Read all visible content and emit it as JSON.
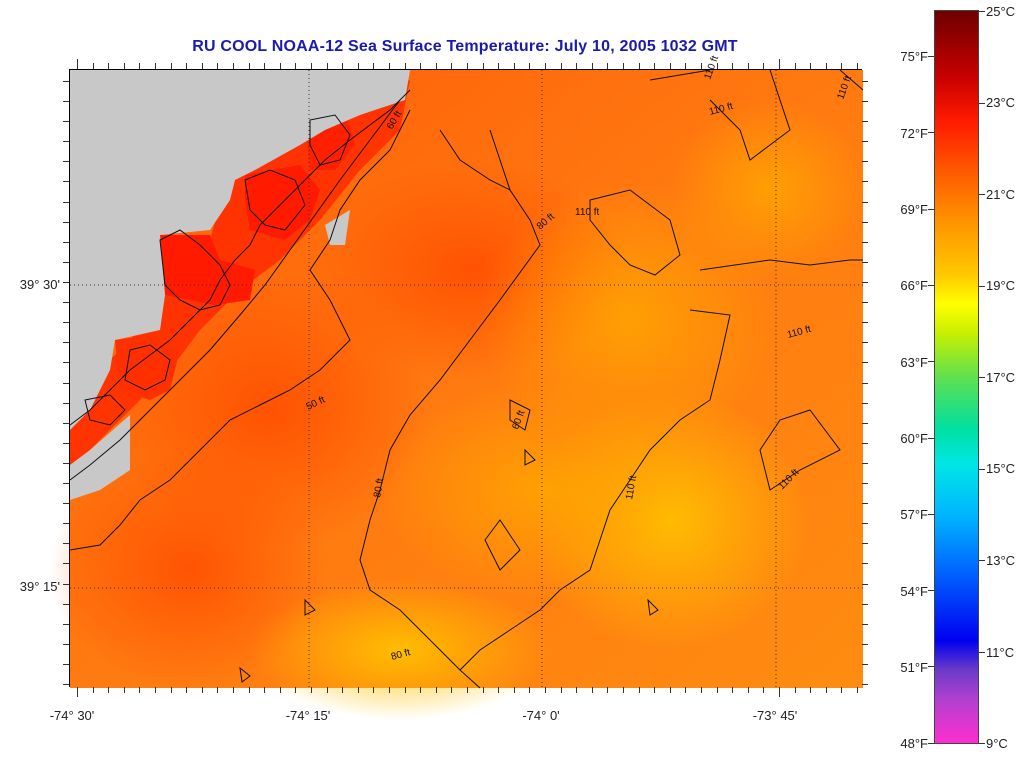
{
  "title": "RU COOL  NOAA-12  Sea Surface Temperature:  July 10, 2005 1032 GMT",
  "map": {
    "lon_labels": [
      "-74° 30'",
      "-74° 15'",
      "-74° 0'",
      "-73° 45'"
    ],
    "lat_labels": [
      "39° 30'",
      "39° 15'"
    ],
    "contour_labels": [
      "60 ft",
      "110 ft",
      "110 ft",
      "110 ft",
      "110 ft",
      "80 ft",
      "60 ft",
      "50 ft",
      "80 ft",
      "110 ft",
      "110 ft",
      "80 ft",
      "110 ft"
    ],
    "colors": {
      "land": "#c8c8c8",
      "sst_warm": "#ff3000",
      "sst_mid": "#ff6a10",
      "sst_cool": "#ffb000"
    }
  },
  "colorbar": {
    "fahrenheit": [
      "75°F",
      "72°F",
      "69°F",
      "66°F",
      "63°F",
      "60°F",
      "57°F",
      "54°F",
      "51°F",
      "48°F"
    ],
    "celsius": [
      "25°C",
      "23°C",
      "21°C",
      "19°C",
      "17°C",
      "15°C",
      "13°C",
      "11°C",
      "9°C"
    ]
  }
}
